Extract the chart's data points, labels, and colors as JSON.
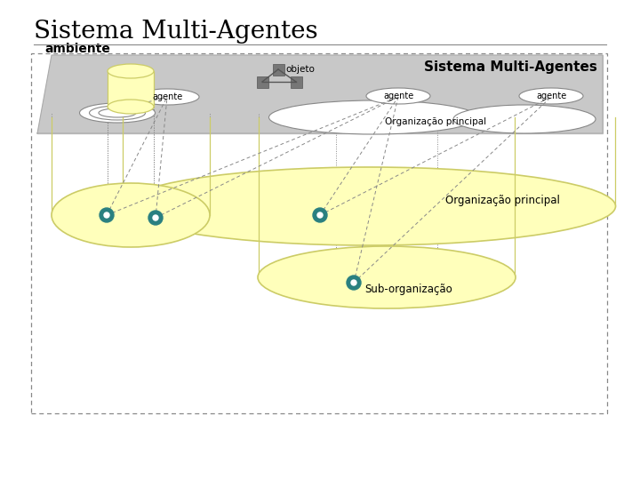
{
  "title": "Sistema Multi-Agentes",
  "title_fontsize": 20,
  "subtitle": "Sistema Multi-Agentes",
  "subtitle_fontsize": 11,
  "yellow_fill": "#ffffbb",
  "yellow_edge": "#cccc66",
  "teal": "#2a8080",
  "floor_color": "#c8c8c8",
  "floor_edge": "#aaaaaa",
  "white": "#ffffff",
  "box_edge": "#888888",
  "dark_gray_sq": "#777777",
  "sub_org_label": "Sub-organização",
  "org_principal_label": "Organização principal",
  "org_principal_floor_label": "Organização principal",
  "agente1": "agente",
  "agente2": "agente",
  "agente3": "agente",
  "objeto_label": "objeto",
  "ambiente_label": "ambiente"
}
